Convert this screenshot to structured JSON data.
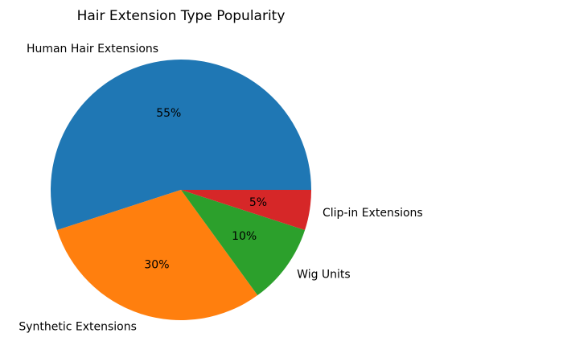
{
  "chart_data": {
    "type": "pie",
    "title": "Hair Extension Type Popularity",
    "categories": [
      "Human Hair Extensions",
      "Synthetic Extensions",
      "Wig Units",
      "Clip-in Extensions"
    ],
    "values": [
      55,
      30,
      10,
      5
    ],
    "labels_pct": [
      "55%",
      "30%",
      "10%",
      "5%"
    ],
    "colors": [
      "#1f77b4",
      "#ff7f0e",
      "#2ca02c",
      "#d62728"
    ],
    "start_angle": 0,
    "direction": "counterclockwise",
    "legend": "none"
  }
}
